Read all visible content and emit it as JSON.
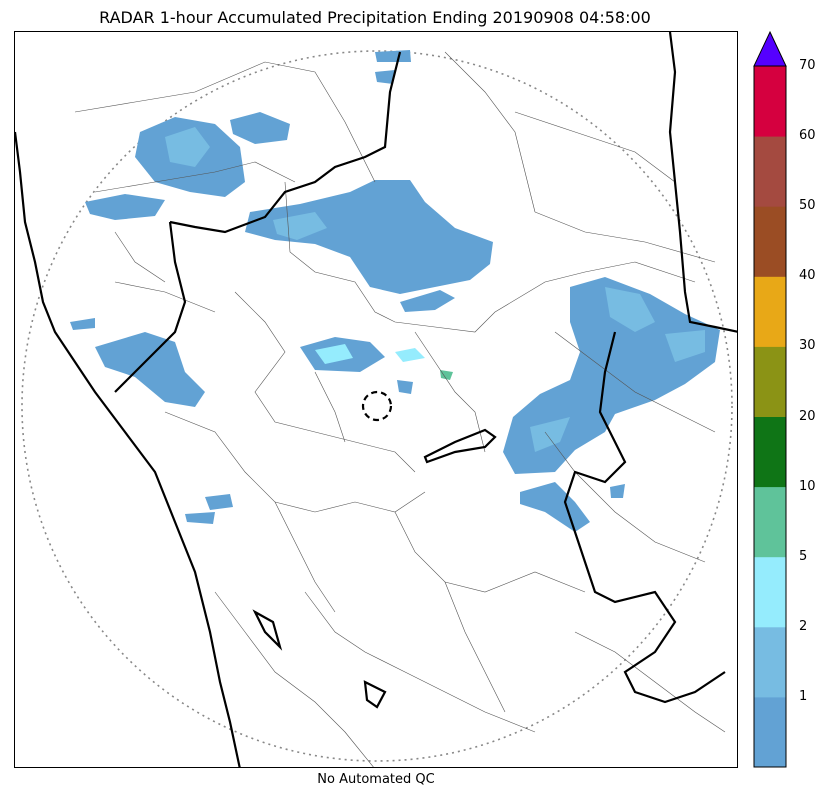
{
  "title": "RADAR 1-hour Accumulated Precipitation Ending 20190908 04:58:00",
  "footer_note": "No Automated QC",
  "colorbar": {
    "labels": [
      "1",
      "2",
      "5",
      "10",
      "20",
      "30",
      "40",
      "50",
      "60",
      "70"
    ],
    "colors": [
      "#62a2d4",
      "#77bce2",
      "#95ecfd",
      "#5fc39a",
      "#0f7516",
      "#8b9315",
      "#e8a817",
      "#9b4d24",
      "#a44a40",
      "#d5003f"
    ],
    "extend_color": "#5500ff"
  }
}
